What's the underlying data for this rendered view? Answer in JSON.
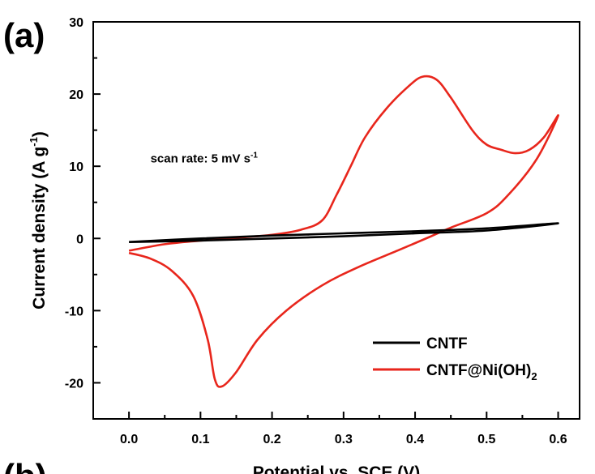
{
  "chart_data": {
    "type": "line",
    "panel_label": "(a)",
    "panel_label_next": "(b)",
    "title": "",
    "xlabel": "Potential vs. SCE (V)",
    "ylabel_main": "Current density (A g",
    "ylabel_sup": "-1",
    "ylabel_close": ")",
    "xlim": [
      -0.05,
      0.63
    ],
    "ylim": [
      -25,
      30
    ],
    "x_ticks": [
      0.0,
      0.1,
      0.2,
      0.3,
      0.4,
      0.5,
      0.6
    ],
    "x_tick_labels": [
      "0.0",
      "0.1",
      "0.2",
      "0.3",
      "0.4",
      "0.5",
      "0.6"
    ],
    "y_ticks": [
      -20,
      -10,
      0,
      10,
      20,
      30
    ],
    "y_tick_labels": [
      "-20",
      "-10",
      "0",
      "10",
      "20",
      "30"
    ],
    "grid": false,
    "legend_position": "bottom-right",
    "annotation": {
      "text_main": "scan rate: 5 mV s",
      "text_sup": "-1",
      "x": 0.03,
      "y": 10.5
    },
    "series": [
      {
        "name": "CNTF",
        "color": "#000000",
        "points": [
          [
            0.0,
            -0.5
          ],
          [
            0.1,
            0.0
          ],
          [
            0.2,
            0.4
          ],
          [
            0.3,
            0.7
          ],
          [
            0.4,
            1.0
          ],
          [
            0.5,
            1.4
          ],
          [
            0.6,
            2.1
          ],
          [
            0.5,
            1.1
          ],
          [
            0.4,
            0.7
          ],
          [
            0.3,
            0.3
          ],
          [
            0.2,
            0.0
          ],
          [
            0.1,
            -0.3
          ],
          [
            0.0,
            -0.5
          ]
        ]
      },
      {
        "name": "CNTF@Ni(OH)",
        "name_sub": "2",
        "color": "#e8261c",
        "points": [
          [
            0.0,
            -1.7
          ],
          [
            0.05,
            -0.8
          ],
          [
            0.1,
            -0.3
          ],
          [
            0.15,
            0.1
          ],
          [
            0.2,
            0.5
          ],
          [
            0.24,
            1.2
          ],
          [
            0.27,
            2.5
          ],
          [
            0.29,
            6.0
          ],
          [
            0.31,
            10.0
          ],
          [
            0.33,
            14.0
          ],
          [
            0.36,
            18.0
          ],
          [
            0.39,
            21.0
          ],
          [
            0.41,
            22.4
          ],
          [
            0.43,
            22.0
          ],
          [
            0.45,
            19.5
          ],
          [
            0.48,
            15.0
          ],
          [
            0.5,
            13.0
          ],
          [
            0.52,
            12.3
          ],
          [
            0.54,
            11.8
          ],
          [
            0.56,
            12.3
          ],
          [
            0.58,
            14.0
          ],
          [
            0.6,
            17.0
          ],
          [
            0.57,
            11.0
          ],
          [
            0.53,
            6.0
          ],
          [
            0.5,
            3.5
          ],
          [
            0.45,
            1.5
          ],
          [
            0.42,
            0.2
          ],
          [
            0.38,
            -1.5
          ],
          [
            0.32,
            -4.0
          ],
          [
            0.27,
            -6.5
          ],
          [
            0.22,
            -10.0
          ],
          [
            0.18,
            -14.0
          ],
          [
            0.15,
            -18.5
          ],
          [
            0.13,
            -20.5
          ],
          [
            0.12,
            -19.5
          ],
          [
            0.11,
            -14.0
          ],
          [
            0.09,
            -8.0
          ],
          [
            0.06,
            -4.5
          ],
          [
            0.03,
            -2.8
          ],
          [
            0.0,
            -2.0
          ]
        ]
      }
    ]
  }
}
